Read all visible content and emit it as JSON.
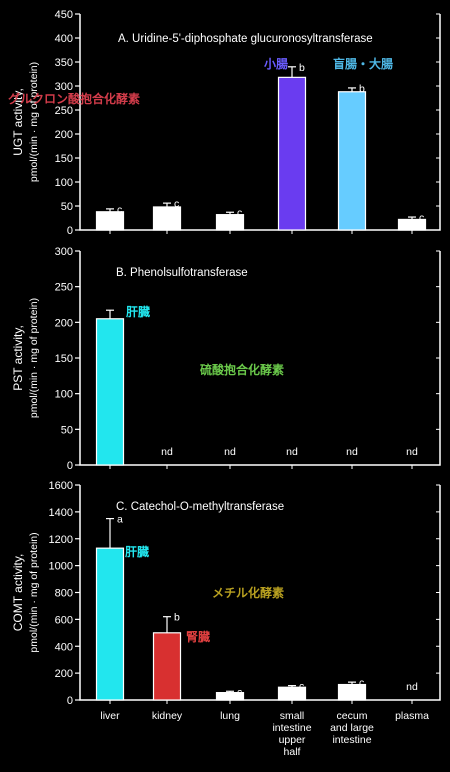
{
  "figure": {
    "categories": [
      "liver",
      "kidney",
      "lung",
      "small intestine upper half",
      "cecum and large intestine",
      "plasma"
    ],
    "category_lines": [
      [
        "liver"
      ],
      [
        "kidney"
      ],
      [
        "lung"
      ],
      [
        "small",
        "intestine",
        "upper",
        "half"
      ],
      [
        "cecum",
        "and large",
        "intestine"
      ],
      [
        "plasma"
      ]
    ]
  },
  "chart_data": [
    {
      "type": "bar",
      "title": "A. Uridine-5'-diphosphate glucuronosyltransferase",
      "ylabel_lines": [
        "UGT activity,",
        "pmol/(min · mg of protein)"
      ],
      "ylim": [
        0,
        450
      ],
      "yticks": [
        0,
        50,
        100,
        150,
        200,
        250,
        300,
        350,
        400,
        450
      ],
      "categories": [
        "liver",
        "kidney",
        "lung",
        "small intestine upper half",
        "cecum and large intestine",
        "plasma"
      ],
      "values": [
        38,
        48,
        32,
        318,
        288,
        22
      ],
      "errors": [
        6,
        8,
        5,
        22,
        8,
        5
      ],
      "letters": [
        "c",
        "c",
        "c",
        "b",
        "b",
        "c"
      ],
      "bar_colors": [
        "#ffffff",
        "#ffffff",
        "#ffffff",
        "#6a3cf0",
        "#66ccff",
        "#ffffff"
      ],
      "annotations": [
        {
          "text": "グルクロン酸抱合化酵素",
          "color": "#d23c4a"
        },
        {
          "text": "小腸",
          "color": "#6a5cff"
        },
        {
          "text": "盲腸・大腸",
          "color": "#4fb8e6"
        }
      ]
    },
    {
      "type": "bar",
      "title": "B. Phenolsulfotransferase",
      "ylabel_lines": [
        "PST activity,",
        "pmol/(min · mg of protein)"
      ],
      "ylim": [
        0,
        300
      ],
      "yticks": [
        0,
        50,
        100,
        150,
        200,
        250,
        300
      ],
      "categories": [
        "liver",
        "kidney",
        "lung",
        "small intestine upper half",
        "cecum and large intestine",
        "plasma"
      ],
      "values": [
        205,
        null,
        null,
        null,
        null,
        null
      ],
      "errors": [
        12,
        0,
        0,
        0,
        0,
        0
      ],
      "bar_colors": [
        "#22e6ee",
        "",
        "",
        "",
        "",
        ""
      ],
      "nd_labels": [
        "",
        "nd",
        "nd",
        "nd",
        "nd",
        "nd"
      ],
      "annotations": [
        {
          "text": "肝臓",
          "color": "#22e6ee"
        },
        {
          "text": "硫酸抱合化酵素",
          "color": "#6ac84a"
        }
      ]
    },
    {
      "type": "bar",
      "title": "C. Catechol-O-methyltransferase",
      "ylabel_lines": [
        "COMT activity,",
        "pmol/(min · mg of protein)"
      ],
      "ylim": [
        0,
        1600
      ],
      "yticks": [
        0,
        200,
        400,
        600,
        800,
        1000,
        1200,
        1400,
        1600
      ],
      "categories": [
        "liver",
        "kidney",
        "lung",
        "small intestine upper half",
        "cecum and large intestine",
        "plasma"
      ],
      "values": [
        1130,
        500,
        55,
        95,
        115,
        null
      ],
      "errors": [
        220,
        120,
        10,
        12,
        18,
        0
      ],
      "letters": [
        "a",
        "b",
        "c",
        "c",
        "c",
        ""
      ],
      "bar_colors": [
        "#22e6ee",
        "#d83030",
        "#ffffff",
        "#ffffff",
        "#ffffff",
        ""
      ],
      "nd_labels": [
        "",
        "",
        "",
        "",
        "",
        "nd"
      ],
      "annotations": [
        {
          "text": "肝臓",
          "color": "#22e6ee"
        },
        {
          "text": "メチル化酵素",
          "color": "#b8a020"
        },
        {
          "text": "腎臓",
          "color": "#e04040"
        }
      ]
    }
  ]
}
